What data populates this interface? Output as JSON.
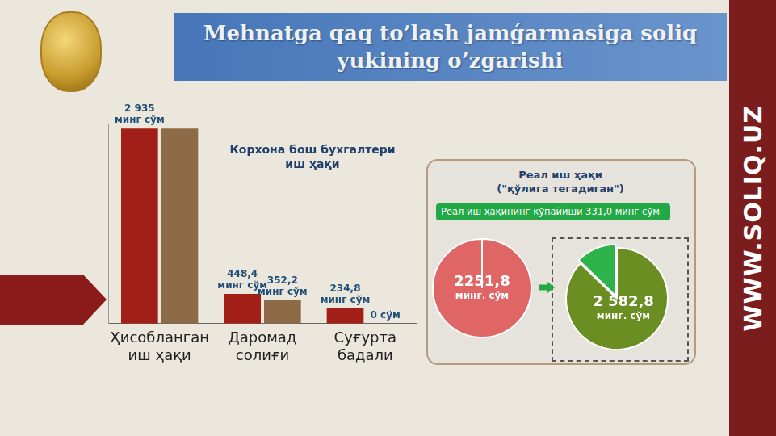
{
  "title": "Mehnatga qaq to’lash jamǵarmasiga soliq yukining o’zgarishi",
  "side_text": "WWW.SOLIQ.UZ",
  "chart_data": [
    {
      "type": "bar",
      "title": "Корхона бош бухгалтери иш ҳақи",
      "categories": [
        "Ҳисобланган иш ҳақи",
        "Даромад солиғи",
        "Суғурта бадали"
      ],
      "series": [
        {
          "color": "#a11f16",
          "values": [
            2935,
            448.4,
            234.8
          ],
          "value_labels": [
            "2 935 минг сўм",
            "448,4 минг сўм",
            "234,8 минг сўм"
          ]
        },
        {
          "color": "#8d6b46",
          "values": [
            2935,
            352.2,
            0
          ],
          "value_labels": [
            null,
            "352,2 минг сўм",
            "0 сўм"
          ]
        }
      ],
      "ylim": [
        0,
        3000
      ],
      "grid": false,
      "data_labels": true,
      "tick_labels": "x"
    },
    {
      "type": "pie",
      "title": "Реал иш ҳақи (\"қўлига тегадиган\")",
      "values": [
        2251.8
      ],
      "value_labels": [
        "2251,8 минг. сўм"
      ],
      "color": "#e06666"
    },
    {
      "type": "pie",
      "values": [
        2251.8,
        331.0
      ],
      "colors": [
        "#6b8e23",
        "#2db34a"
      ],
      "annotation": "Реал иш ҳақининг кўпайиши 331,0 минг сўм",
      "center_label": "2 582,8 минг. сўм"
    }
  ]
}
